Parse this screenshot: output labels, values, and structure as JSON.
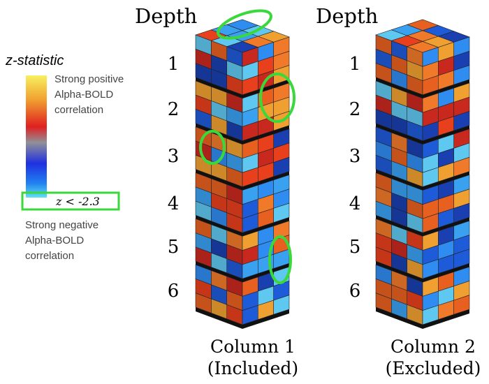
{
  "legend": {
    "title": "z-statistic",
    "top_label": [
      "Strong positive",
      "Alpha-BOLD",
      "correlation"
    ],
    "threshold": "z < -2.3",
    "bottom_label": [
      "Strong negative",
      "Alpha-BOLD",
      "correlation"
    ]
  },
  "columns": [
    {
      "header": "Depth",
      "depths": [
        "1",
        "2",
        "3",
        "4",
        "5",
        "6"
      ],
      "caption": [
        "Column 1",
        "(Included)"
      ]
    },
    {
      "header": "Depth",
      "depths": [
        "1",
        "2",
        "3",
        "4",
        "5",
        "6"
      ],
      "caption": [
        "Column 2",
        "(Excluded)"
      ]
    }
  ]
}
